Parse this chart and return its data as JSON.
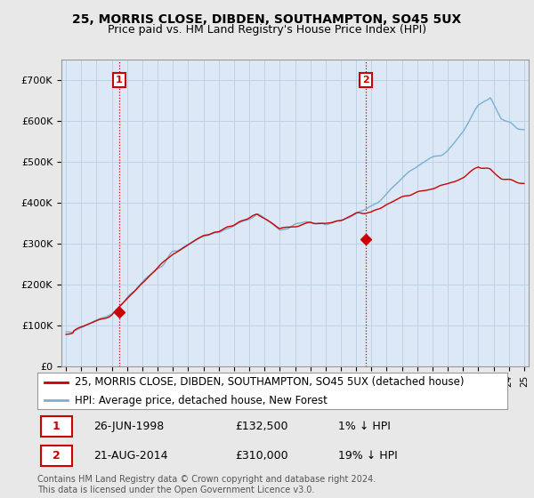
{
  "title": "25, MORRIS CLOSE, DIBDEN, SOUTHAMPTON, SO45 5UX",
  "subtitle": "Price paid vs. HM Land Registry's House Price Index (HPI)",
  "legend_line1": "25, MORRIS CLOSE, DIBDEN, SOUTHAMPTON, SO45 5UX (detached house)",
  "legend_line2": "HPI: Average price, detached house, New Forest",
  "sale1_label": "1",
  "sale1_date": "26-JUN-1998",
  "sale1_price": "£132,500",
  "sale1_hpi": "1% ↓ HPI",
  "sale1_year": 1998.49,
  "sale1_value": 132500,
  "sale2_label": "2",
  "sale2_date": "21-AUG-2014",
  "sale2_price": "£310,000",
  "sale2_hpi": "19% ↓ HPI",
  "sale2_year": 2014.63,
  "sale2_value": 310000,
  "hpi_color": "#7ab0d4",
  "price_color": "#cc0000",
  "sale_marker_color": "#cc0000",
  "annotation_color": "#cc0000",
  "vline_color": "#cc0000",
  "background_color": "#e8e8e8",
  "plot_background": "#dce8f5",
  "grid_color": "#b8cfe0",
  "ylabel": "",
  "ylim": [
    0,
    750000
  ],
  "yticks": [
    0,
    100000,
    200000,
    300000,
    400000,
    500000,
    600000,
    700000
  ],
  "ytick_labels": [
    "£0",
    "£100K",
    "£200K",
    "£300K",
    "£400K",
    "£500K",
    "£600K",
    "£700K"
  ],
  "copyright": "Contains HM Land Registry data © Crown copyright and database right 2024.\nThis data is licensed under the Open Government Licence v3.0.",
  "title_fontsize": 10,
  "subtitle_fontsize": 9,
  "tick_fontsize": 8,
  "legend_fontsize": 8.5,
  "copyright_fontsize": 7
}
